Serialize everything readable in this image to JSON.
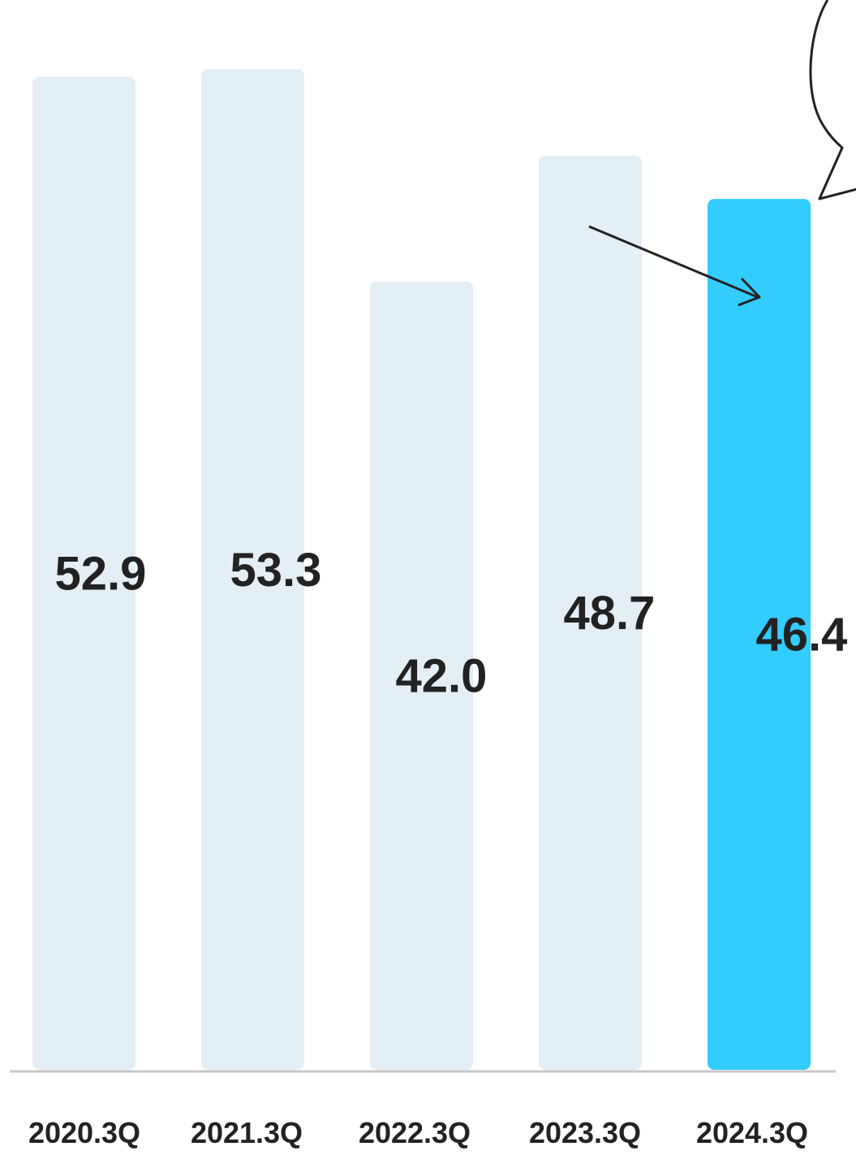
{
  "chart_data": {
    "type": "bar",
    "categories": [
      "2020.3Q",
      "2021.3Q",
      "2022.3Q",
      "2023.3Q",
      "2024.3Q"
    ],
    "values": [
      52.9,
      53.3,
      42.0,
      48.7,
      46.4
    ],
    "value_labels": [
      "52.9",
      "53.3",
      "42.0",
      "48.7",
      "46.4"
    ],
    "title": "",
    "xlabel": "",
    "ylabel": "",
    "ylim": [
      0,
      57
    ],
    "grid": false,
    "highlight_index": 4,
    "colors": {
      "bar": "#e3eef5",
      "highlight": "#33ccff",
      "axis": "#c8c8c8",
      "text": "#222222",
      "annotation": "#222222"
    },
    "annotations": [
      {
        "type": "arrow",
        "from_category": "2023.3Q",
        "to_category": "2024.3Q"
      },
      {
        "type": "callout-bubble",
        "text": ""
      }
    ]
  }
}
